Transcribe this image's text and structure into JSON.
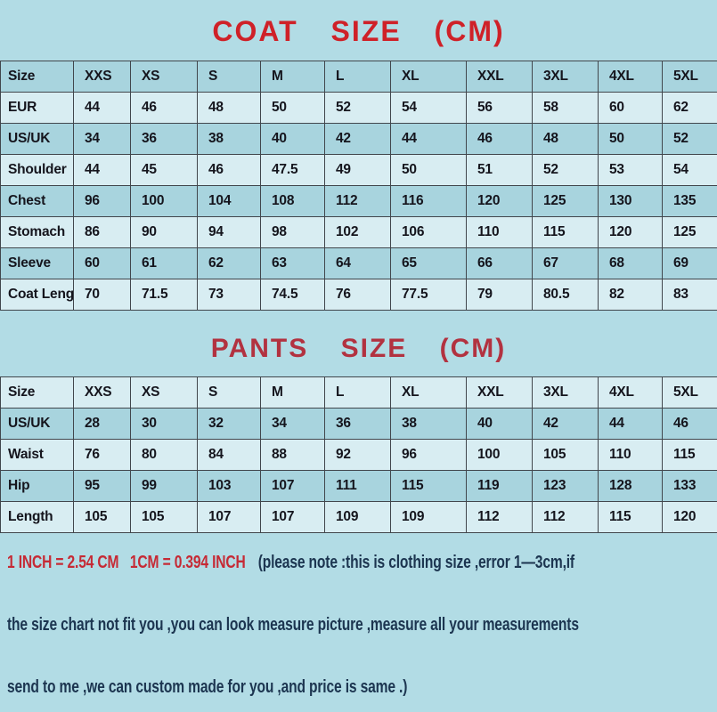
{
  "colors": {
    "page_bg": "#b2dce5",
    "row_light": "#d8edf2",
    "row_dark": "#a8d4de",
    "grid_line": "#41464c",
    "table_text": "#15151d",
    "coat_title_red": "#cf2128",
    "pants_title_red": "#b23240",
    "note_red": "#c62a35",
    "note_blue": "#1c3550"
  },
  "chart_data": [
    {
      "type": "table",
      "title": "COAT SIZE (CM)",
      "columns": [
        "Size",
        "XXS",
        "XS",
        "S",
        "M",
        "L",
        "XL",
        "XXL",
        "3XL",
        "4XL",
        "5XL"
      ],
      "rows": [
        {
          "label": "EUR",
          "values": [
            44,
            46,
            48,
            50,
            52,
            54,
            56,
            58,
            60,
            62
          ]
        },
        {
          "label": "US/UK",
          "values": [
            34,
            36,
            38,
            40,
            42,
            44,
            46,
            48,
            50,
            52
          ]
        },
        {
          "label": "Shoulder",
          "values": [
            44,
            45,
            46,
            47.5,
            49,
            50,
            51,
            52,
            53,
            54
          ]
        },
        {
          "label": "Chest",
          "values": [
            96,
            100,
            104,
            108,
            112,
            116,
            120,
            125,
            130,
            135
          ]
        },
        {
          "label": "Stomach",
          "values": [
            86,
            90,
            94,
            98,
            102,
            106,
            110,
            115,
            120,
            125
          ]
        },
        {
          "label": "Sleeve",
          "values": [
            60,
            61,
            62,
            63,
            64,
            65,
            66,
            67,
            68,
            69
          ]
        },
        {
          "label": "Coat Length",
          "values": [
            70,
            71.5,
            73,
            74.5,
            76,
            77.5,
            79,
            80.5,
            82,
            83
          ]
        }
      ]
    },
    {
      "type": "table",
      "title": "PANTS SIZE (CM)",
      "columns": [
        "Size",
        "XXS",
        "XS",
        "S",
        "M",
        "L",
        "XL",
        "XXL",
        "3XL",
        "4XL",
        "5XL"
      ],
      "rows": [
        {
          "label": "US/UK",
          "values": [
            28,
            30,
            32,
            34,
            36,
            38,
            40,
            42,
            44,
            46
          ]
        },
        {
          "label": "Waist",
          "values": [
            76,
            80,
            84,
            88,
            92,
            96,
            100,
            105,
            110,
            115
          ]
        },
        {
          "label": "Hip",
          "values": [
            95,
            99,
            103,
            107,
            111,
            115,
            119,
            123,
            128,
            133
          ]
        },
        {
          "label": "Length",
          "values": [
            105,
            105,
            107,
            107,
            109,
            109,
            112,
            112,
            115,
            120
          ]
        }
      ]
    }
  ],
  "notes": {
    "conversion": "1 INCH = 2.54 CM   1CM = 0.394 INCH",
    "line1_rest": "(please note :this is clothing size ,error 1—3cm,if",
    "line2": "the size chart not fit you ,you can look measure picture ,measure all your measurements",
    "line3": "send to me ,we can custom made for you ,and price is same .)"
  }
}
